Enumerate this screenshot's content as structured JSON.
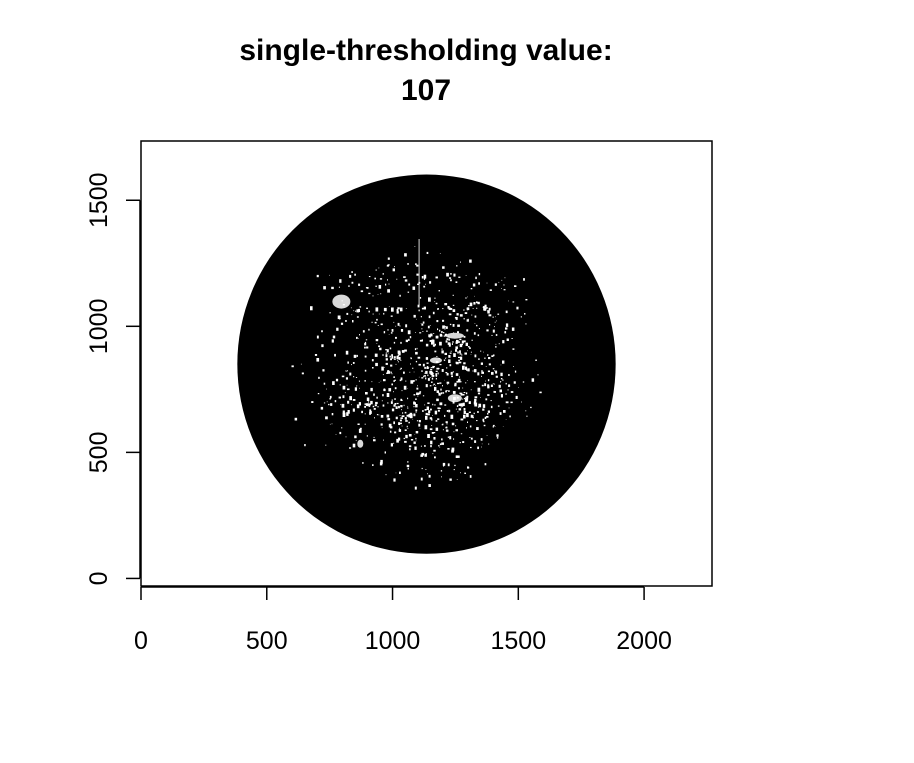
{
  "chart_data": {
    "type": "heatmap",
    "title": [
      "single-thresholding value:",
      "107"
    ],
    "xlabel": "",
    "ylabel": "",
    "xlim": [
      0,
      2270
    ],
    "ylim": [
      -30,
      1735
    ],
    "x_ticks": [
      0,
      500,
      1000,
      1500,
      2000
    ],
    "y_ticks": [
      0,
      500,
      1000,
      1500
    ],
    "image": {
      "description_free": true,
      "circle_center": [
        1135,
        850
      ],
      "circle_radius": 752,
      "fill_color": "#000000",
      "background_color": "#ffffff",
      "speckle_color": "#ffffff"
    },
    "grid": false,
    "legend": "none"
  },
  "colors": {
    "ink": "#000000",
    "paper": "#ffffff"
  }
}
